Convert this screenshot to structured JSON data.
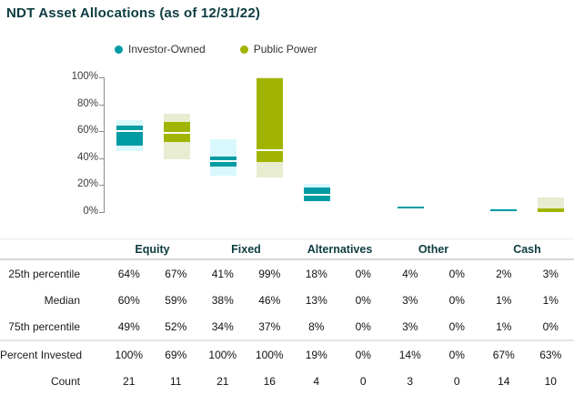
{
  "title": "NDT Asset Allocations (as of 12/31/22)",
  "colors": {
    "teal": "#009ba3",
    "teal_light": "#d8f8fc",
    "olive": "#a1b400",
    "olive_light": "#e8ecd0",
    "header_teal": "#0d3d40"
  },
  "legend": {
    "items": [
      {
        "label": "Investor-Owned",
        "color": "#009ba3"
      },
      {
        "label": "Public Power",
        "color": "#a1b400"
      }
    ]
  },
  "chart_data": {
    "type": "bar",
    "subtype": "floating-percentile-range-bars",
    "title": "NDT Asset Allocations (as of 12/31/22)",
    "ylim": [
      0,
      100
    ],
    "yticks": [
      100,
      80,
      60,
      40,
      20,
      0
    ],
    "ytick_labels": [
      "100%",
      "80%",
      "60%",
      "40%",
      "20%",
      "0%"
    ],
    "grid": false,
    "legend_position": "top",
    "groups": [
      "Equity",
      "Fixed",
      "Alternatives",
      "Other",
      "Cash"
    ],
    "series": [
      "Investor-Owned",
      "Public Power"
    ],
    "bars": [
      {
        "group": "Equity",
        "series": "Investor-Owned",
        "outer_low": 45,
        "outer_high": 68,
        "p75": 49,
        "p25": 64,
        "median": 60,
        "show_median_line": true
      },
      {
        "group": "Equity",
        "series": "Public Power",
        "outer_low": 39,
        "outer_high": 73,
        "p75": 52,
        "p25": 67,
        "median": 59,
        "show_median_line": true
      },
      {
        "group": "Fixed",
        "series": "Investor-Owned",
        "outer_low": 27,
        "outer_high": 54,
        "p75": 34,
        "p25": 41,
        "median": 38,
        "show_median_line": true
      },
      {
        "group": "Fixed",
        "series": "Public Power",
        "outer_low": 26,
        "outer_high": 100,
        "p75": 37,
        "p25": 99,
        "median": 46,
        "show_median_line": true
      },
      {
        "group": "Alternatives",
        "series": "Investor-Owned",
        "outer_low": 8,
        "outer_high": 21,
        "p75": 8,
        "p25": 18,
        "median": 13,
        "show_median_line": true
      },
      {
        "group": "Alternatives",
        "series": "Public Power",
        "outer_low": 0,
        "outer_high": 0,
        "p75": 0,
        "p25": 0,
        "median": 0,
        "show_median_line": false
      },
      {
        "group": "Other",
        "series": "Investor-Owned",
        "outer_low": 3,
        "outer_high": 4,
        "p75": 3,
        "p25": 4,
        "median": 3,
        "show_median_line": false
      },
      {
        "group": "Other",
        "series": "Public Power",
        "outer_low": 0,
        "outer_high": 0,
        "p75": 0,
        "p25": 0,
        "median": 0,
        "show_median_line": false
      },
      {
        "group": "Cash",
        "series": "Investor-Owned",
        "outer_low": 1,
        "outer_high": 3,
        "p75": 1,
        "p25": 2,
        "median": 1,
        "show_median_line": false
      },
      {
        "group": "Cash",
        "series": "Public Power",
        "outer_low": 0,
        "outer_high": 11,
        "p75": 0,
        "p25": 3,
        "median": 1,
        "show_median_line": false
      }
    ]
  },
  "table": {
    "group_headers": [
      "Equity",
      "Fixed",
      "Alternatives",
      "Other",
      "Cash"
    ],
    "rows": [
      {
        "label": "25th percentile",
        "values": [
          "64%",
          "67%",
          "41%",
          "99%",
          "18%",
          "0%",
          "4%",
          "0%",
          "2%",
          "3%"
        ]
      },
      {
        "label": "Median",
        "values": [
          "60%",
          "59%",
          "38%",
          "46%",
          "13%",
          "0%",
          "3%",
          "0%",
          "1%",
          "1%"
        ]
      },
      {
        "label": "75th percentile",
        "values": [
          "49%",
          "52%",
          "34%",
          "37%",
          "8%",
          "0%",
          "3%",
          "0%",
          "1%",
          "0%"
        ]
      },
      {
        "label": "Percent Invested",
        "values": [
          "100%",
          "69%",
          "100%",
          "100%",
          "19%",
          "0%",
          "14%",
          "0%",
          "67%",
          "63%"
        ]
      },
      {
        "label": "Count",
        "values": [
          "21",
          "11",
          "21",
          "16",
          "4",
          "0",
          "3",
          "0",
          "14",
          "10"
        ]
      }
    ]
  }
}
